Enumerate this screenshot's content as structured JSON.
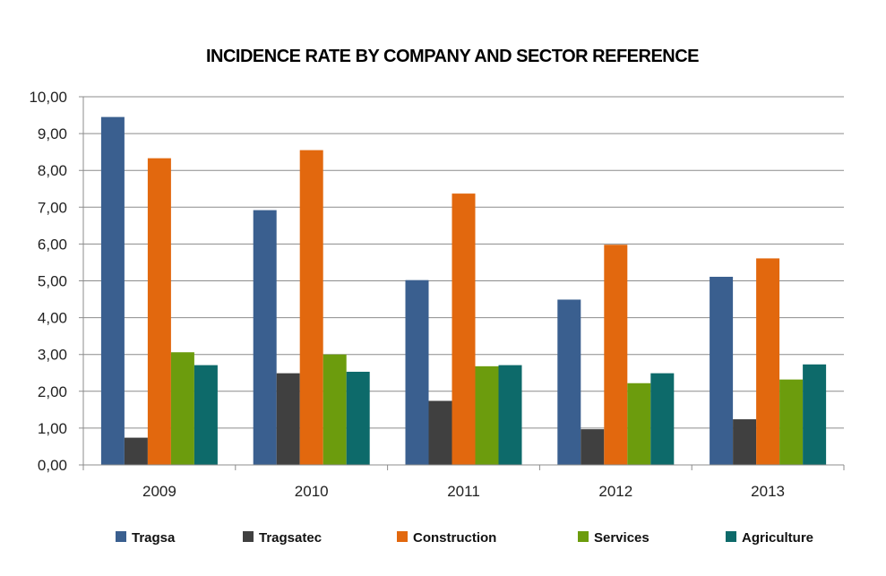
{
  "chart_data": {
    "type": "bar",
    "title": "INCIDENCE RATE BY COMPANY AND SECTOR REFERENCE",
    "xlabel": "",
    "ylabel": "",
    "categories": [
      "2009",
      "2010",
      "2011",
      "2012",
      "2013"
    ],
    "ylim": [
      0,
      10
    ],
    "yticks": [
      "0,00",
      "1,00",
      "2,00",
      "3,00",
      "4,00",
      "5,00",
      "6,00",
      "7,00",
      "8,00",
      "9,00",
      "10,00"
    ],
    "grid": true,
    "legend_position": "bottom",
    "series": [
      {
        "name": "Tragsa",
        "color": "#3a5f8f",
        "values": [
          9.45,
          6.92,
          5.02,
          4.49,
          5.11
        ]
      },
      {
        "name": "Tragsatec",
        "color": "#404040",
        "values": [
          0.74,
          2.49,
          1.74,
          0.97,
          1.24
        ]
      },
      {
        "name": "Construction",
        "color": "#e2680e",
        "values": [
          8.33,
          8.55,
          7.37,
          5.98,
          5.61
        ]
      },
      {
        "name": "Services",
        "color": "#6c9c0d",
        "values": [
          3.06,
          3.0,
          2.68,
          2.22,
          2.32
        ]
      },
      {
        "name": "Agriculture",
        "color": "#0d6a6a",
        "values": [
          2.71,
          2.53,
          2.71,
          2.49,
          2.73
        ]
      }
    ]
  }
}
